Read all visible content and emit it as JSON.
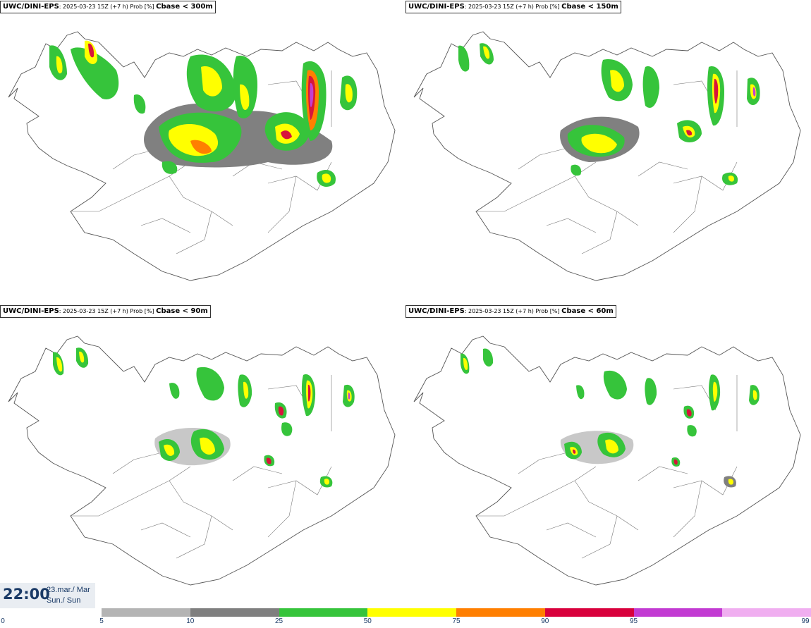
{
  "panels": [
    {
      "model": "UWC/DINI-EPS",
      "run": ": 2025-03-23 15Z (+7 h) Prob [%] ",
      "field": "Cbase < 300m"
    },
    {
      "model": "UWC/DINI-EPS",
      "run": ": 2025-03-23 15Z (+7 h) Prob [%] ",
      "field": "Cbase < 150m"
    },
    {
      "model": "UWC/DINI-EPS",
      "run": ": 2025-03-23 15Z (+7 h) Prob [%] ",
      "field": "Cbase < 90m"
    },
    {
      "model": "UWC/DINI-EPS",
      "run": ": 2025-03-23 15Z (+7 h) Prob [%] ",
      "field": "Cbase < 60m"
    }
  ],
  "valid_time": {
    "time": "22:00",
    "date": "23.mar./ Mar",
    "day": "Sun./ Sun"
  },
  "legend": {
    "ticks": [
      "0",
      "5",
      "10",
      "25",
      "50",
      "75",
      "90",
      "95",
      "99"
    ],
    "colors": [
      "#b4b4b4",
      "#7f7f7f",
      "#36c43b",
      "#ffff00",
      "#ff7f00",
      "#d8003c",
      "#c23ad2",
      "#f0aef0"
    ]
  },
  "colors": {
    "very_high": "#f7b5f5",
    "high": "#c33fd2",
    "red": "#d7143b",
    "orange": "#ff7f00",
    "yellow": "#ffff00",
    "green": "#36c43b",
    "dark_gray": "#808080",
    "light_gray": "#c8c8c8"
  }
}
